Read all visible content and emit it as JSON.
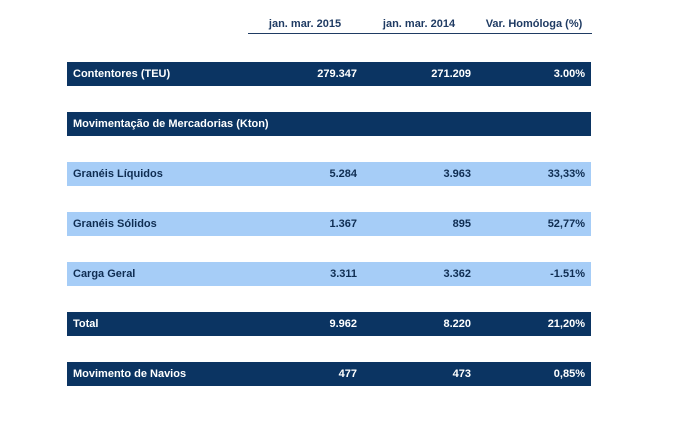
{
  "headers": [
    "jan. mar. 2015",
    "jan. mar. 2014",
    "Var. Homóloga (%)"
  ],
  "rows": [
    {
      "label": "Contentores (TEU)",
      "v2015": "279.347",
      "v2014": "271.209",
      "var": "3.00%"
    },
    {
      "label": "Movimentação de Mercadorias (Kton)",
      "v2015": "",
      "v2014": "",
      "var": ""
    },
    {
      "label": "Granéis Líquidos",
      "v2015": "5.284",
      "v2014": "3.963",
      "var": "33,33%"
    },
    {
      "label": "Granéis Sólidos",
      "v2015": "1.367",
      "v2014": "895",
      "var": "52,77%"
    },
    {
      "label": "Carga Geral",
      "v2015": "3.311",
      "v2014": "3.362",
      "var": "-1.51%"
    },
    {
      "label": "Total",
      "v2015": "9.962",
      "v2014": "8.220",
      "var": "21,20%"
    },
    {
      "label": "Movimento de Navios",
      "v2015": "477",
      "v2014": "473",
      "var": "0,85%"
    }
  ],
  "colors": {
    "dark_row": "#0b3462",
    "light_row": "#a6cdf7",
    "header_text": "#1f3b63"
  }
}
